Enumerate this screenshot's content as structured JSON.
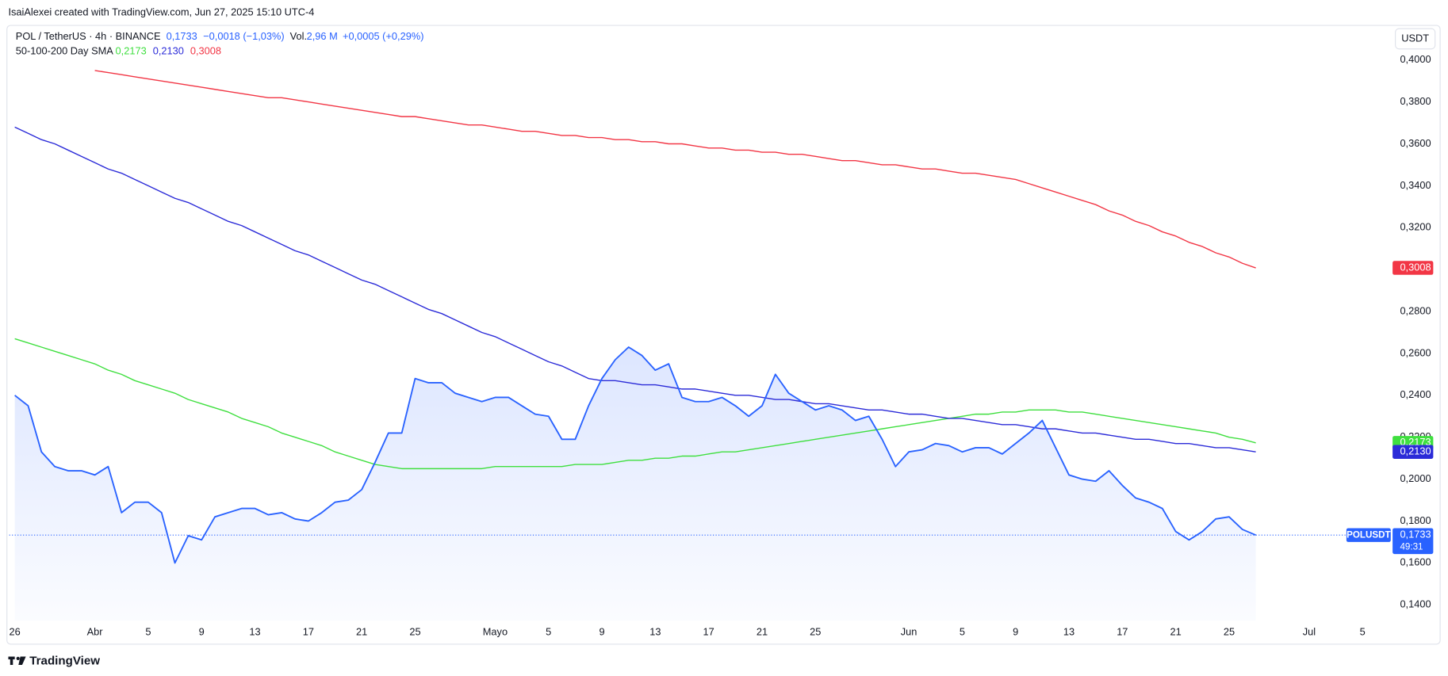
{
  "header": {
    "attribution": "IsaiAlexei created with TradingView.com, Jun 27, 2025 15:10 UTC-4"
  },
  "footer": {
    "brand": "TradingView"
  },
  "chart_data": {
    "type": "line",
    "symbol": "POL / TetherUS · 4h · BINANCE",
    "change": "−0,0018 (−1,03%)",
    "volume_label": "Vol.",
    "volume": "2,96 M",
    "volume_change": "+0,0005 (+0,29%)",
    "indicator": "50-100-200 Day SMA",
    "currency": "USDT",
    "countdown": "49:31",
    "categories": [
      "26",
      null,
      null,
      null,
      null,
      null,
      "Abr",
      null,
      null,
      null,
      "5",
      null,
      null,
      null,
      "9",
      null,
      null,
      null,
      "13",
      null,
      null,
      null,
      "17",
      null,
      null,
      null,
      "21",
      null,
      null,
      null,
      "25",
      null,
      null,
      null,
      null,
      null,
      "Mayo",
      null,
      null,
      null,
      "5",
      null,
      null,
      null,
      "9",
      null,
      null,
      null,
      "13",
      null,
      null,
      null,
      "17",
      null,
      null,
      null,
      "21",
      null,
      null,
      null,
      "25",
      null,
      null,
      null,
      null,
      null,
      null,
      "Jun",
      null,
      null,
      null,
      "5",
      null,
      null,
      null,
      "9",
      null,
      null,
      null,
      "13",
      null,
      null,
      null,
      "17",
      null,
      null,
      null,
      "21",
      null,
      null,
      null,
      "25",
      null,
      null,
      null,
      null,
      null,
      "Jul",
      null,
      null,
      null,
      "5"
    ],
    "series": [
      {
        "name": "POLUSDT",
        "color": "#2962ff",
        "area": true,
        "last_value_label": "0,1733",
        "values": [
          0.24,
          0.235,
          0.213,
          0.206,
          0.204,
          0.204,
          0.202,
          0.206,
          0.184,
          0.189,
          0.189,
          0.184,
          0.16,
          0.173,
          0.171,
          0.182,
          0.184,
          0.186,
          0.186,
          0.183,
          0.184,
          0.181,
          0.18,
          0.184,
          0.189,
          0.19,
          0.195,
          0.208,
          0.222,
          0.222,
          0.248,
          0.246,
          0.246,
          0.241,
          0.239,
          0.237,
          0.239,
          0.239,
          0.235,
          0.231,
          0.23,
          0.219,
          0.219,
          0.235,
          0.248,
          0.257,
          0.263,
          0.259,
          0.252,
          0.255,
          0.239,
          0.237,
          0.237,
          0.239,
          0.235,
          0.23,
          0.235,
          0.25,
          0.241,
          0.237,
          0.233,
          0.235,
          0.233,
          0.228,
          0.23,
          0.219,
          0.206,
          0.213,
          0.214,
          0.217,
          0.216,
          0.213,
          0.215,
          0.215,
          0.212,
          0.217,
          0.222,
          0.228,
          0.215,
          0.202,
          0.2,
          0.199,
          0.204,
          0.197,
          0.191,
          0.189,
          0.186,
          0.175,
          0.171,
          0.175,
          0.181,
          0.182,
          0.176,
          0.1733,
          null,
          null,
          null,
          null,
          null,
          null,
          null,
          null
        ]
      },
      {
        "color": "#3fdf3f",
        "last_value_label": "0,2173",
        "values": [
          0.267,
          0.265,
          0.263,
          0.261,
          0.259,
          0.257,
          0.255,
          0.252,
          0.25,
          0.247,
          0.245,
          0.243,
          0.241,
          0.238,
          0.236,
          0.234,
          0.232,
          0.229,
          0.227,
          0.225,
          0.222,
          0.22,
          0.218,
          0.216,
          0.213,
          0.211,
          0.209,
          0.207,
          0.206,
          0.205,
          0.205,
          0.205,
          0.205,
          0.205,
          0.205,
          0.205,
          0.206,
          0.206,
          0.206,
          0.206,
          0.206,
          0.206,
          0.207,
          0.207,
          0.207,
          0.208,
          0.209,
          0.209,
          0.21,
          0.21,
          0.211,
          0.211,
          0.212,
          0.213,
          0.213,
          0.214,
          0.215,
          0.216,
          0.217,
          0.218,
          0.219,
          0.22,
          0.221,
          0.222,
          0.223,
          0.224,
          0.225,
          0.226,
          0.227,
          0.228,
          0.229,
          0.23,
          0.231,
          0.231,
          0.232,
          0.232,
          0.233,
          0.233,
          0.233,
          0.232,
          0.232,
          0.231,
          0.23,
          0.229,
          0.228,
          0.227,
          0.226,
          0.225,
          0.224,
          0.223,
          0.222,
          0.22,
          0.219,
          0.2173,
          null,
          null,
          null,
          null,
          null,
          null,
          null,
          null
        ]
      },
      {
        "color": "#2b2bd8",
        "last_value_label": "0,2130",
        "values": [
          0.368,
          0.365,
          0.362,
          0.36,
          0.357,
          0.354,
          0.351,
          0.348,
          0.346,
          0.343,
          0.34,
          0.337,
          0.334,
          0.332,
          0.329,
          0.326,
          0.323,
          0.321,
          0.318,
          0.315,
          0.312,
          0.309,
          0.307,
          0.304,
          0.301,
          0.298,
          0.295,
          0.293,
          0.29,
          0.287,
          0.284,
          0.281,
          0.279,
          0.276,
          0.273,
          0.27,
          0.268,
          0.265,
          0.262,
          0.259,
          0.256,
          0.254,
          0.251,
          0.248,
          0.247,
          0.247,
          0.246,
          0.245,
          0.245,
          0.244,
          0.243,
          0.243,
          0.242,
          0.241,
          0.24,
          0.24,
          0.239,
          0.238,
          0.238,
          0.237,
          0.236,
          0.236,
          0.235,
          0.234,
          0.233,
          0.233,
          0.232,
          0.231,
          0.231,
          0.23,
          0.229,
          0.229,
          0.228,
          0.227,
          0.226,
          0.226,
          0.225,
          0.224,
          0.224,
          0.223,
          0.222,
          0.222,
          0.221,
          0.22,
          0.219,
          0.219,
          0.218,
          0.217,
          0.217,
          0.216,
          0.215,
          0.215,
          0.214,
          0.213,
          null,
          null,
          null,
          null,
          null,
          null,
          null,
          null
        ]
      },
      {
        "color": "#f23645",
        "last_value_label": "0,3008",
        "values": [
          null,
          null,
          null,
          null,
          null,
          null,
          0.395,
          0.394,
          0.393,
          0.392,
          0.391,
          0.39,
          0.389,
          0.388,
          0.387,
          0.386,
          0.385,
          0.384,
          0.383,
          0.382,
          0.382,
          0.381,
          0.38,
          0.379,
          0.378,
          0.377,
          0.376,
          0.375,
          0.374,
          0.373,
          0.373,
          0.372,
          0.371,
          0.37,
          0.369,
          0.369,
          0.368,
          0.367,
          0.366,
          0.366,
          0.365,
          0.364,
          0.364,
          0.363,
          0.363,
          0.362,
          0.362,
          0.361,
          0.361,
          0.36,
          0.36,
          0.359,
          0.358,
          0.358,
          0.357,
          0.357,
          0.356,
          0.356,
          0.355,
          0.355,
          0.354,
          0.353,
          0.352,
          0.352,
          0.351,
          0.35,
          0.35,
          0.349,
          0.348,
          0.348,
          0.347,
          0.346,
          0.346,
          0.345,
          0.344,
          0.343,
          0.341,
          0.339,
          0.337,
          0.335,
          0.333,
          0.331,
          0.328,
          0.326,
          0.323,
          0.321,
          0.318,
          0.316,
          0.313,
          0.311,
          0.308,
          0.306,
          0.303,
          0.3008,
          null,
          null,
          null,
          null,
          null,
          null,
          null,
          null
        ]
      }
    ],
    "ylim": [
      0.1325,
      0.4163
    ],
    "yticks": [
      {
        "value": 0.14,
        "label": "0,1400"
      },
      {
        "value": 0.16,
        "label": "0,1600"
      },
      {
        "value": 0.18,
        "label": "0,1800"
      },
      {
        "value": 0.2,
        "label": "0,2000"
      },
      {
        "value": 0.22,
        "label": "0,2200"
      },
      {
        "value": 0.24,
        "label": "0,2400"
      },
      {
        "value": 0.26,
        "label": "0,2600"
      },
      {
        "value": 0.28,
        "label": "0,2800"
      },
      {
        "value": 0.3,
        "label": "0,3000"
      },
      {
        "value": 0.32,
        "label": "0,3200"
      },
      {
        "value": 0.34,
        "label": "0,3400"
      },
      {
        "value": 0.36,
        "label": "0,3600"
      },
      {
        "value": 0.38,
        "label": "0,3800"
      },
      {
        "value": 0.4,
        "label": "0,4000"
      }
    ],
    "grid": false
  }
}
